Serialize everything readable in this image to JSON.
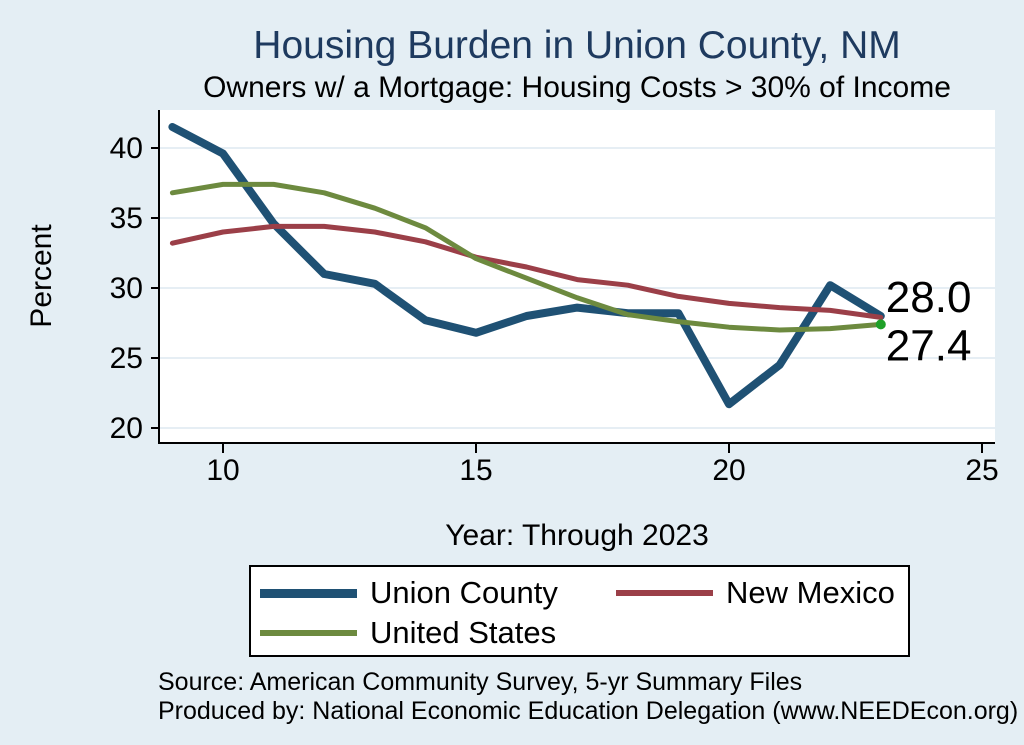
{
  "header": {
    "title": "Housing Burden in Union County, NM",
    "subtitle": "Owners w/ a Mortgage: Housing Costs > 30% of Income"
  },
  "chart_data": {
    "type": "line",
    "x": [
      9,
      10,
      11,
      12,
      13,
      14,
      15,
      16,
      17,
      18,
      19,
      20,
      21,
      22,
      23
    ],
    "series": [
      {
        "name": "Union County",
        "color": "#1F5174",
        "stroke_width": 8,
        "values": [
          41.5,
          39.6,
          34.6,
          31.0,
          30.3,
          27.7,
          26.8,
          28.0,
          28.6,
          28.2,
          28.2,
          21.7,
          24.5,
          30.2,
          28.0
        ]
      },
      {
        "name": "New Mexico",
        "color": "#9B3F48",
        "stroke_width": 5,
        "values": [
          33.2,
          34.0,
          34.4,
          34.4,
          34.0,
          33.3,
          32.2,
          31.5,
          30.6,
          30.2,
          29.4,
          28.9,
          28.6,
          28.4,
          27.9
        ]
      },
      {
        "name": "United States",
        "color": "#6D8A3F",
        "stroke_width": 5,
        "end_marker_color": "#1FA028",
        "values": [
          36.8,
          37.4,
          37.4,
          36.8,
          35.7,
          34.3,
          32.1,
          30.7,
          29.3,
          28.1,
          27.6,
          27.2,
          27.0,
          27.1,
          27.4
        ]
      }
    ],
    "title": "Housing Burden in Union County, NM",
    "subtitle": "Owners w/ a Mortgage: Housing Costs > 30% of Income",
    "xlabel": "Year: Through 2023",
    "ylabel": "Percent",
    "x_ticks": [
      10,
      15,
      20,
      25
    ],
    "y_ticks": [
      20,
      25,
      30,
      35,
      40
    ],
    "xlim": [
      8.75,
      25.3
    ],
    "ylim": [
      18.9,
      42.7
    ],
    "grid": "horizontal",
    "legend_position": "bottom",
    "end_labels": [
      {
        "series": "Union County",
        "text": "28.0"
      },
      {
        "series": "United States",
        "text": "27.4"
      }
    ]
  },
  "legend": {
    "items": [
      {
        "label": "Union County"
      },
      {
        "label": "New Mexico"
      },
      {
        "label": "United States"
      }
    ]
  },
  "footer": {
    "source_line1": "Source: American Community Survey, 5-yr Summary Files",
    "source_line2": "Produced by: National Economic Education Delegation (www.NEEDEcon.org)"
  },
  "colors": {
    "background": "#E4EEF4",
    "plot_background": "#FFFFFF",
    "gridline": "#DEE9F1",
    "axis": "#000000",
    "title": "#1E3A5F",
    "text": "#000000"
  }
}
